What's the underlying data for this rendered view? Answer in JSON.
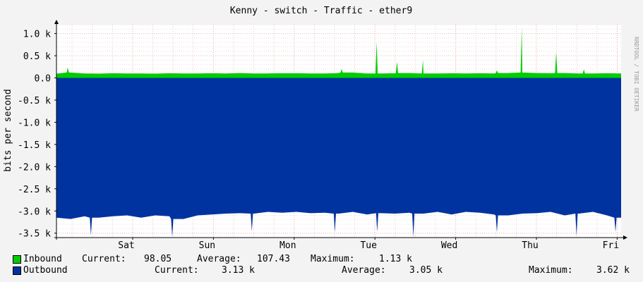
{
  "chart_data": {
    "type": "area",
    "title": "Kenny - switch - Traffic - ether9",
    "ylabel": "bits per second",
    "watermark": "RRDTOOL / TOBI OETIKER",
    "ylim": [
      -3600,
      1200
    ],
    "y_ticks": [
      {
        "value": 1000,
        "label": "1.0 k"
      },
      {
        "value": 500,
        "label": "0.5 k"
      },
      {
        "value": 0,
        "label": "0.0"
      },
      {
        "value": -500,
        "label": "-0.5 k"
      },
      {
        "value": -1000,
        "label": "-1.0 k"
      },
      {
        "value": -1500,
        "label": "-1.5 k"
      },
      {
        "value": -2000,
        "label": "-2.0 k"
      },
      {
        "value": -2500,
        "label": "-2.5 k"
      },
      {
        "value": -3000,
        "label": "-3.0 k"
      },
      {
        "value": -3500,
        "label": "-3.5 k"
      }
    ],
    "x_ticks": [
      {
        "value": 0.135,
        "label": "Sat"
      },
      {
        "value": 0.278,
        "label": "Sun"
      },
      {
        "value": 0.421,
        "label": "Mon"
      },
      {
        "value": 0.564,
        "label": "Tue"
      },
      {
        "value": 0.707,
        "label": "Wed"
      },
      {
        "value": 0.85,
        "label": "Thu"
      },
      {
        "value": 0.993,
        "label": "Fri"
      }
    ],
    "x": [
      0.0,
      0.025,
      0.05,
      0.075,
      0.1,
      0.125,
      0.15,
      0.175,
      0.2,
      0.225,
      0.25,
      0.275,
      0.3,
      0.325,
      0.35,
      0.375,
      0.4,
      0.425,
      0.45,
      0.475,
      0.5,
      0.525,
      0.55,
      0.575,
      0.6,
      0.625,
      0.65,
      0.675,
      0.7,
      0.725,
      0.75,
      0.775,
      0.8,
      0.825,
      0.85,
      0.875,
      0.9,
      0.925,
      0.95,
      0.975,
      1.0
    ],
    "series": [
      {
        "name": "Inbound",
        "color": "#00cc00",
        "values": [
          95,
          120,
          100,
          95,
          105,
          100,
          100,
          95,
          105,
          100,
          100,
          105,
          100,
          110,
          100,
          100,
          105,
          105,
          100,
          100,
          110,
          120,
          100,
          100,
          105,
          110,
          100,
          100,
          105,
          100,
          105,
          100,
          110,
          120,
          110,
          105,
          110,
          100,
          100,
          105,
          100
        ]
      },
      {
        "name": "Outbound",
        "color": "#0033a0",
        "negative": true,
        "values": [
          3150,
          3180,
          3120,
          3150,
          3120,
          3100,
          3150,
          3100,
          3120,
          3180,
          3100,
          3080,
          3060,
          3050,
          3060,
          3020,
          3040,
          3020,
          3050,
          3040,
          3060,
          3020,
          3080,
          3050,
          3060,
          3040,
          3060,
          3020,
          3080,
          3020,
          3040,
          3080,
          3100,
          3060,
          3050,
          3020,
          3100,
          3060,
          3020,
          3100,
          3150
        ]
      }
    ],
    "spikes": [
      {
        "series": "Inbound",
        "x": 0.567,
        "value": 800
      },
      {
        "series": "Inbound",
        "x": 0.603,
        "value": 360
      },
      {
        "series": "Inbound",
        "x": 0.649,
        "value": 400
      },
      {
        "series": "Inbound",
        "x": 0.824,
        "value": 1130
      },
      {
        "series": "Inbound",
        "x": 0.885,
        "value": 580
      },
      {
        "series": "Inbound",
        "x": 0.02,
        "value": 230
      },
      {
        "series": "Inbound",
        "x": 0.505,
        "value": 200
      },
      {
        "series": "Inbound",
        "x": 0.78,
        "value": 170
      },
      {
        "series": "Inbound",
        "x": 0.934,
        "value": 190
      },
      {
        "series": "Outbound",
        "x": 0.061,
        "value": 3550
      },
      {
        "series": "Outbound",
        "x": 0.205,
        "value": 3580
      },
      {
        "series": "Outbound",
        "x": 0.346,
        "value": 3460
      },
      {
        "series": "Outbound",
        "x": 0.493,
        "value": 3480
      },
      {
        "series": "Outbound",
        "x": 0.568,
        "value": 3470
      },
      {
        "series": "Outbound",
        "x": 0.632,
        "value": 3590
      },
      {
        "series": "Outbound",
        "x": 0.78,
        "value": 3480
      },
      {
        "series": "Outbound",
        "x": 0.921,
        "value": 3560
      },
      {
        "series": "Outbound",
        "x": 0.99,
        "value": 3470
      }
    ],
    "grid": true
  },
  "legend": {
    "inbound": {
      "label": "Inbound",
      "current_label": "Current:",
      "current": "98.05",
      "average_label": "Average:",
      "average": "107.43",
      "maximum_label": "Maximum:",
      "maximum": "1.13 k"
    },
    "outbound": {
      "label": "Outbound",
      "current_label": "Current:",
      "current": "3.13 k",
      "average_label": "Average:",
      "average": "3.05 k",
      "maximum_label": "Maximum:",
      "maximum": "3.62 k"
    }
  }
}
